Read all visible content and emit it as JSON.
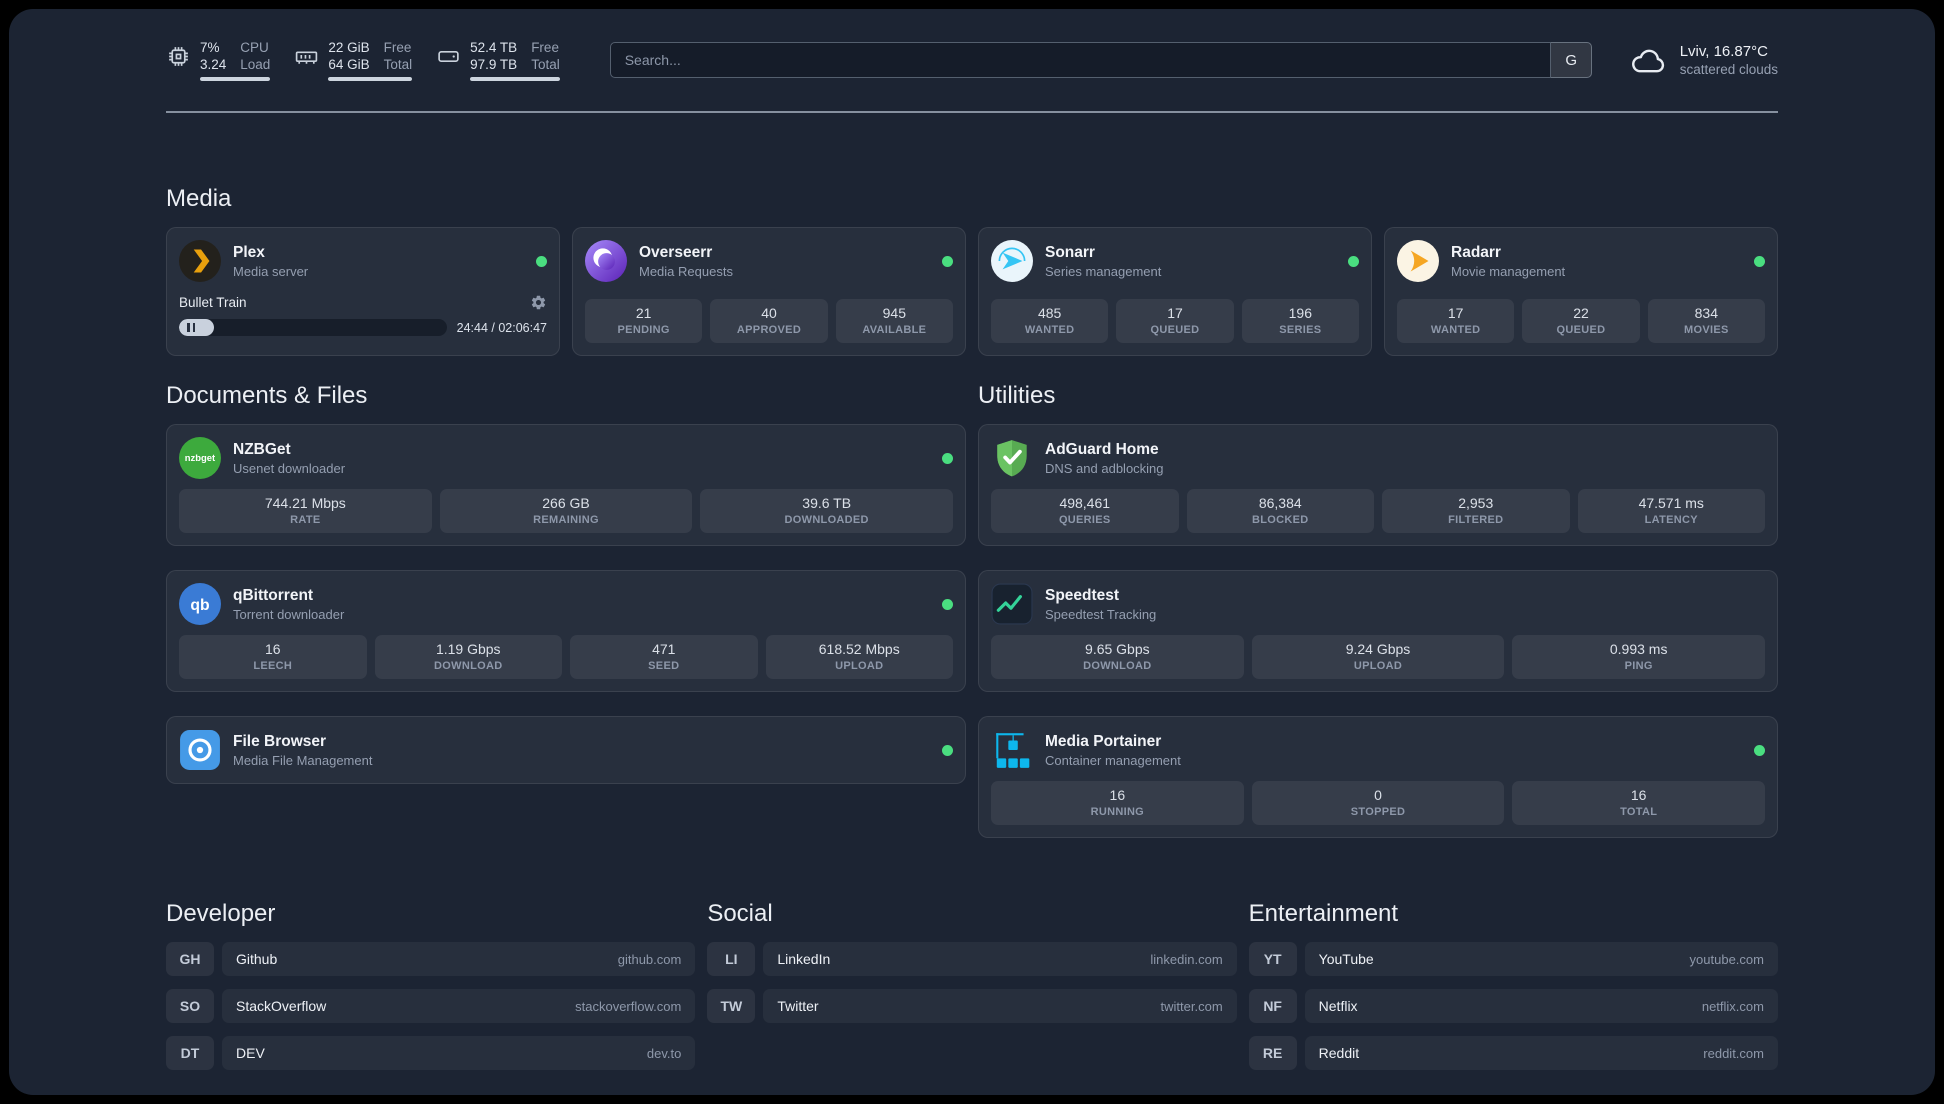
{
  "colors": {
    "status_online": "#4ade80"
  },
  "topbar": {
    "cpu": {
      "icon": "cpu-icon",
      "value": "7%",
      "sub": "3.24",
      "label_top": "CPU",
      "label_bottom": "Load",
      "bar_percent": 100
    },
    "memory": {
      "icon": "memory-icon",
      "value": "22 GiB",
      "sub": "64 GiB",
      "label_top": "Free",
      "label_bottom": "Total",
      "bar_percent": 100
    },
    "disk": {
      "icon": "disk-icon",
      "value": "52.4 TB",
      "sub": "97.9 TB",
      "label_top": "Free",
      "label_bottom": "Total",
      "bar_percent": 100
    },
    "search": {
      "placeholder": "Search...",
      "provider_label": "G"
    },
    "weather": {
      "icon": "cloud-icon",
      "location": "Lviv, 16.87°C",
      "condition": "scattered clouds"
    }
  },
  "media": {
    "title": "Media",
    "plex": {
      "icon": "plex-icon",
      "name": "Plex",
      "desc": "Media server",
      "player": {
        "track": "Bullet Train",
        "time": "24:44 / 02:06:47",
        "progress_percent": 13
      }
    },
    "overseerr": {
      "icon": "overseerr-icon",
      "name": "Overseerr",
      "desc": "Media Requests",
      "stats": [
        {
          "value": "21",
          "label": "PENDING"
        },
        {
          "value": "40",
          "label": "APPROVED"
        },
        {
          "value": "945",
          "label": "AVAILABLE"
        }
      ]
    },
    "sonarr": {
      "icon": "sonarr-icon",
      "name": "Sonarr",
      "desc": "Series management",
      "stats": [
        {
          "value": "485",
          "label": "WANTED"
        },
        {
          "value": "17",
          "label": "QUEUED"
        },
        {
          "value": "196",
          "label": "SERIES"
        }
      ]
    },
    "radarr": {
      "icon": "radarr-icon",
      "name": "Radarr",
      "desc": "Movie management",
      "stats": [
        {
          "value": "17",
          "label": "WANTED"
        },
        {
          "value": "22",
          "label": "QUEUED"
        },
        {
          "value": "834",
          "label": "MOVIES"
        }
      ]
    }
  },
  "documents": {
    "title": "Documents & Files",
    "nzbget": {
      "icon": "nzbget-icon",
      "icon_text": "nzbget",
      "name": "NZBGet",
      "desc": "Usenet downloader",
      "stats": [
        {
          "value": "744.21 Mbps",
          "label": "RATE"
        },
        {
          "value": "266 GB",
          "label": "REMAINING"
        },
        {
          "value": "39.6 TB",
          "label": "DOWNLOADED"
        }
      ]
    },
    "qbittorrent": {
      "icon": "qbittorrent-icon",
      "icon_text": "qb",
      "name": "qBittorrent",
      "desc": "Torrent downloader",
      "stats": [
        {
          "value": "16",
          "label": "LEECH"
        },
        {
          "value": "1.19 Gbps",
          "label": "DOWNLOAD"
        },
        {
          "value": "471",
          "label": "SEED"
        },
        {
          "value": "618.52 Mbps",
          "label": "UPLOAD"
        }
      ]
    },
    "filebrowser": {
      "icon": "filebrowser-icon",
      "name": "File Browser",
      "desc": "Media File Management"
    }
  },
  "utilities": {
    "title": "Utilities",
    "adguard": {
      "icon": "adguard-icon",
      "name": "AdGuard Home",
      "desc": "DNS and adblocking",
      "stats": [
        {
          "value": "498,461",
          "label": "QUERIES"
        },
        {
          "value": "86,384",
          "label": "BLOCKED"
        },
        {
          "value": "2,953",
          "label": "FILTERED"
        },
        {
          "value": "47.571 ms",
          "label": "LATENCY"
        }
      ]
    },
    "speedtest": {
      "icon": "speedtest-icon",
      "name": "Speedtest",
      "desc": "Speedtest Tracking",
      "stats": [
        {
          "value": "9.65 Gbps",
          "label": "DOWNLOAD"
        },
        {
          "value": "9.24 Gbps",
          "label": "UPLOAD"
        },
        {
          "value": "0.993 ms",
          "label": "PING"
        }
      ]
    },
    "portainer": {
      "icon": "portainer-icon",
      "name": "Media Portainer",
      "desc": "Container management",
      "stats": [
        {
          "value": "16",
          "label": "RUNNING"
        },
        {
          "value": "0",
          "label": "STOPPED"
        },
        {
          "value": "16",
          "label": "TOTAL"
        }
      ]
    }
  },
  "bookmarks": {
    "developer": {
      "title": "Developer",
      "items": [
        {
          "abbr": "GH",
          "name": "Github",
          "url": "github.com"
        },
        {
          "abbr": "SO",
          "name": "StackOverflow",
          "url": "stackoverflow.com"
        },
        {
          "abbr": "DT",
          "name": "DEV",
          "url": "dev.to"
        }
      ]
    },
    "social": {
      "title": "Social",
      "items": [
        {
          "abbr": "LI",
          "name": "LinkedIn",
          "url": "linkedin.com"
        },
        {
          "abbr": "TW",
          "name": "Twitter",
          "url": "twitter.com"
        }
      ]
    },
    "entertainment": {
      "title": "Entertainment",
      "items": [
        {
          "abbr": "YT",
          "name": "YouTube",
          "url": "youtube.com"
        },
        {
          "abbr": "NF",
          "name": "Netflix",
          "url": "netflix.com"
        },
        {
          "abbr": "RE",
          "name": "Reddit",
          "url": "reddit.com"
        }
      ]
    }
  }
}
